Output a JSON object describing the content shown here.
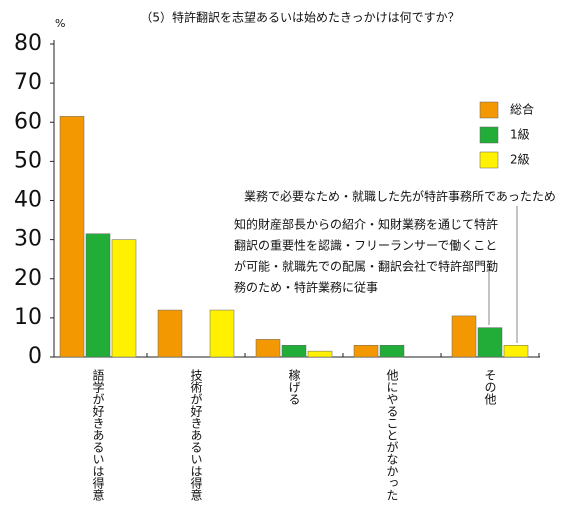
{
  "chart_data": {
    "type": "bar",
    "title": "（5）特許翻訳を志望あるいは始めたきっかけは何ですか？",
    "y_unit": "%",
    "categories": [
      "語学が好きあるいは得意",
      "技術が好きあるいは得意",
      "稼げる",
      "他にやることがなかった",
      "その他"
    ],
    "series": [
      {
        "name": "総合",
        "color": "#f39800",
        "values": [
          61.5,
          12,
          4.5,
          3,
          10.5
        ]
      },
      {
        "name": "1級",
        "color": "#22ac38",
        "values": [
          31.5,
          0,
          3,
          3,
          7.5
        ]
      },
      {
        "name": "2級",
        "color": "#fff100",
        "values": [
          30,
          12,
          1.5,
          0,
          3
        ]
      }
    ],
    "ylim": [
      0,
      80
    ],
    "yticks": [
      0,
      10,
      20,
      30,
      40,
      50,
      60,
      70,
      80
    ],
    "grid": false,
    "legend": "right",
    "annotations": [
      {
        "lines": [
          "業務で必要なため・就職した先が特許事務所であったため"
        ]
      },
      {
        "lines": [
          "知的財産部長からの紹介・知財業務を通じて特許",
          "翻訳の重要性を認識・フリーランサーで働くこと",
          "が可能・就職先での配属・翻訳会社で特許部門勤",
          "務のため・特許業務に従事"
        ]
      }
    ]
  }
}
